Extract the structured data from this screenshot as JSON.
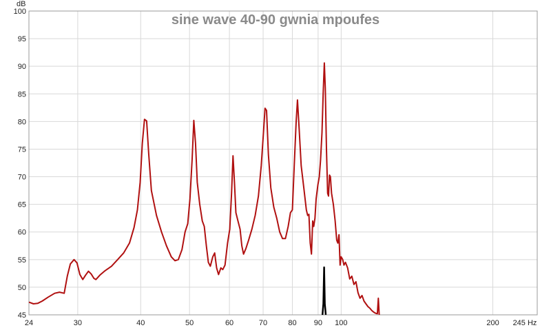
{
  "chart_data": {
    "type": "line",
    "title": "sine wave 40-90 gwnia mpoufes",
    "x_scale": "log",
    "xlim": [
      24,
      245
    ],
    "ylim": [
      45,
      100
    ],
    "x_unit": "Hz",
    "y_unit": "dB",
    "x_ticks": [
      24,
      30,
      40,
      50,
      60,
      70,
      80,
      90,
      100,
      200,
      245
    ],
    "x_tick_labels": [
      "24",
      "30",
      "40",
      "50",
      "60",
      "70",
      "80",
      "90",
      "100",
      "200",
      "245 Hz"
    ],
    "y_ticks": [
      45,
      50,
      55,
      60,
      65,
      70,
      75,
      80,
      85,
      90,
      95,
      100
    ],
    "y_tick_labels": [
      "45",
      "50",
      "55",
      "60",
      "65",
      "70",
      "75",
      "80",
      "85",
      "90",
      "95",
      "100"
    ],
    "y_unit_label": "dB",
    "grid": true,
    "series": [
      {
        "color": "#b01010",
        "points": [
          [
            24,
            47.3
          ],
          [
            24.5,
            47.0
          ],
          [
            25.0,
            47.1
          ],
          [
            25.5,
            47.5
          ],
          [
            26.2,
            48.2
          ],
          [
            27.0,
            48.9
          ],
          [
            27.6,
            49.1
          ],
          [
            28.2,
            48.9
          ],
          [
            28.6,
            52.0
          ],
          [
            29.0,
            54.2
          ],
          [
            29.5,
            55.0
          ],
          [
            29.9,
            54.4
          ],
          [
            30.3,
            52.3
          ],
          [
            30.7,
            51.4
          ],
          [
            31.1,
            52.2
          ],
          [
            31.5,
            52.9
          ],
          [
            31.9,
            52.4
          ],
          [
            32.3,
            51.6
          ],
          [
            32.6,
            51.4
          ],
          [
            33.2,
            52.2
          ],
          [
            34.0,
            53.0
          ],
          [
            35.0,
            53.8
          ],
          [
            36.0,
            55.0
          ],
          [
            37.0,
            56.2
          ],
          [
            38.0,
            58.0
          ],
          [
            38.8,
            60.8
          ],
          [
            39.4,
            64.0
          ],
          [
            39.9,
            69.0
          ],
          [
            40.3,
            76.0
          ],
          [
            40.7,
            80.4
          ],
          [
            41.1,
            80.1
          ],
          [
            41.5,
            74.0
          ],
          [
            42.0,
            67.5
          ],
          [
            43.0,
            63.0
          ],
          [
            44.0,
            60.0
          ],
          [
            45.0,
            57.5
          ],
          [
            46.0,
            55.5
          ],
          [
            46.8,
            54.8
          ],
          [
            47.5,
            55.0
          ],
          [
            48.3,
            56.8
          ],
          [
            49.0,
            60.0
          ],
          [
            49.6,
            61.5
          ],
          [
            50.1,
            66.0
          ],
          [
            50.6,
            73.0
          ],
          [
            51.0,
            80.2
          ],
          [
            51.4,
            76.0
          ],
          [
            51.8,
            69.0
          ],
          [
            52.4,
            65.0
          ],
          [
            53.0,
            62.0
          ],
          [
            53.5,
            61.0
          ],
          [
            54.0,
            57.5
          ],
          [
            54.5,
            54.5
          ],
          [
            55.0,
            53.8
          ],
          [
            55.6,
            55.5
          ],
          [
            56.1,
            56.2
          ],
          [
            56.6,
            53.5
          ],
          [
            57.1,
            52.3
          ],
          [
            57.7,
            53.5
          ],
          [
            58.2,
            53.2
          ],
          [
            58.8,
            54.0
          ],
          [
            59.5,
            58.0
          ],
          [
            60.1,
            60.5
          ],
          [
            60.6,
            67.0
          ],
          [
            61.0,
            73.8
          ],
          [
            61.4,
            69.0
          ],
          [
            61.8,
            63.5
          ],
          [
            62.4,
            62.0
          ],
          [
            63.0,
            60.5
          ],
          [
            63.5,
            57.5
          ],
          [
            64.0,
            56.0
          ],
          [
            64.7,
            57.0
          ],
          [
            65.5,
            58.5
          ],
          [
            66.5,
            60.5
          ],
          [
            67.5,
            63.0
          ],
          [
            68.5,
            66.5
          ],
          [
            69.4,
            72.0
          ],
          [
            70.0,
            77.0
          ],
          [
            70.6,
            82.4
          ],
          [
            71.1,
            82.0
          ],
          [
            71.7,
            74.0
          ],
          [
            72.5,
            68.0
          ],
          [
            73.5,
            64.5
          ],
          [
            74.5,
            62.5
          ],
          [
            75.5,
            60.0
          ],
          [
            76.5,
            58.8
          ],
          [
            77.5,
            58.8
          ],
          [
            78.5,
            61.0
          ],
          [
            79.3,
            63.5
          ],
          [
            80.0,
            64.0
          ],
          [
            80.7,
            72.0
          ],
          [
            81.4,
            80.0
          ],
          [
            81.9,
            83.9
          ],
          [
            82.5,
            79.0
          ],
          [
            83.3,
            72.0
          ],
          [
            84.3,
            68.0
          ],
          [
            85.3,
            64.0
          ],
          [
            85.8,
            63.0
          ],
          [
            86.3,
            63.2
          ],
          [
            86.8,
            58.0
          ],
          [
            87.3,
            56.0
          ],
          [
            87.8,
            62.0
          ],
          [
            88.2,
            61.0
          ],
          [
            88.7,
            62.5
          ],
          [
            89.2,
            66.0
          ],
          [
            89.9,
            68.5
          ],
          [
            90.5,
            70.0
          ],
          [
            91.0,
            73.0
          ],
          [
            91.6,
            78.0
          ],
          [
            92.1,
            85.0
          ],
          [
            92.6,
            90.6
          ],
          [
            93.0,
            86.0
          ],
          [
            93.5,
            75.0
          ],
          [
            94.0,
            67.0
          ],
          [
            94.4,
            66.5
          ],
          [
            94.8,
            70.3
          ],
          [
            95.2,
            70.0
          ],
          [
            95.7,
            67.0
          ],
          [
            96.5,
            65.0
          ],
          [
            97.3,
            62.0
          ],
          [
            98.0,
            58.5
          ],
          [
            98.5,
            58.0
          ],
          [
            99.0,
            59.5
          ],
          [
            99.5,
            54.0
          ],
          [
            100.0,
            55.5
          ],
          [
            100.7,
            55.0
          ],
          [
            101.3,
            54.0
          ],
          [
            102.0,
            54.5
          ],
          [
            103.0,
            53.5
          ],
          [
            104.0,
            51.5
          ],
          [
            105.0,
            52.0
          ],
          [
            106.0,
            50.5
          ],
          [
            107.0,
            51.0
          ],
          [
            108.0,
            49.0
          ],
          [
            109.0,
            48.0
          ],
          [
            110.0,
            48.5
          ],
          [
            111.0,
            47.5
          ],
          [
            112.0,
            47.0
          ],
          [
            113.0,
            46.5
          ],
          [
            114.0,
            46.2
          ],
          [
            115.0,
            45.8
          ],
          [
            116.0,
            45.5
          ],
          [
            117.0,
            45.3
          ],
          [
            118.0,
            45.2
          ],
          [
            118.5,
            48.0
          ],
          [
            119.0,
            45.0
          ]
        ]
      },
      {
        "color": "#000000",
        "points": [
          [
            91.8,
            45.0
          ],
          [
            92.2,
            47.0
          ],
          [
            92.5,
            53.6
          ],
          [
            92.8,
            47.0
          ],
          [
            93.2,
            45.0
          ]
        ]
      }
    ]
  }
}
